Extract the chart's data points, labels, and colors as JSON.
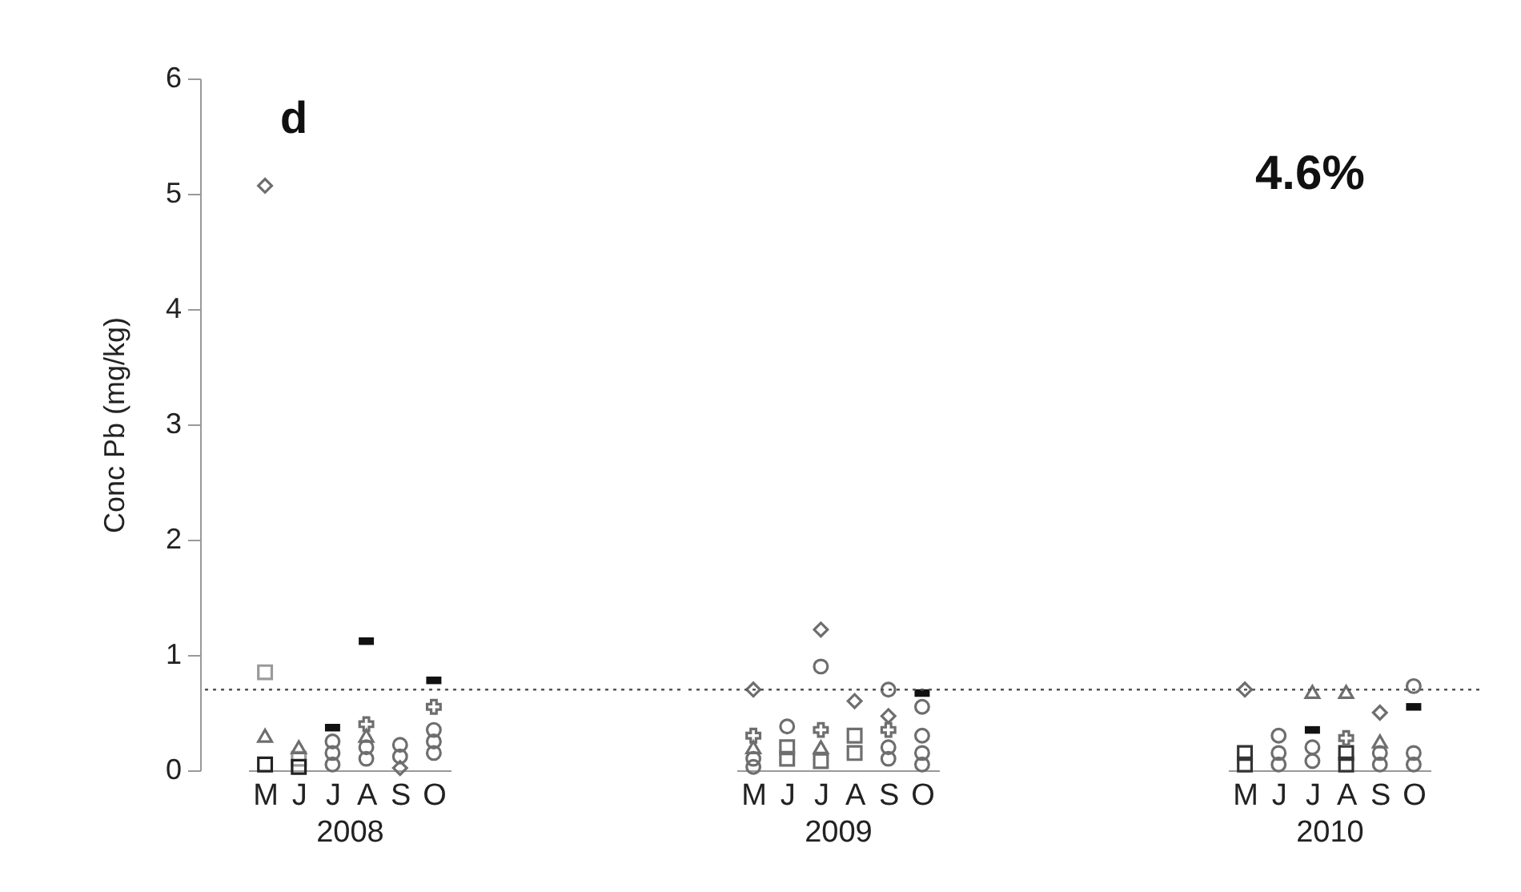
{
  "chart_data": [
    {
      "type": "scatter",
      "xlabel": "2008",
      "ylabel": "Conc Pb (mg/kg)",
      "categories": [
        "M",
        "J",
        "J",
        "A",
        "S",
        "O"
      ],
      "ylim": [
        0,
        6
      ],
      "yticks": [
        0,
        1,
        2,
        3,
        4,
        5,
        6
      ],
      "grid": false,
      "annotations": [
        "d"
      ],
      "ref_lines": [
        {
          "axis": "y",
          "value": 0.7,
          "line_style": "dotted",
          "color": "#555555"
        }
      ],
      "series": [
        {
          "marker": "diamond",
          "color": "#6e6e6e",
          "values": [
            5.07,
            null,
            null,
            null,
            0.02,
            null
          ]
        },
        {
          "marker": "square",
          "color": "#9a9a9a",
          "values": [
            0.85,
            0.1,
            null,
            null,
            null,
            null
          ]
        },
        {
          "marker": "square",
          "color": "#222222",
          "values": [
            0.05,
            0.03,
            null,
            null,
            null,
            null
          ]
        },
        {
          "marker": "triangle",
          "color": "#6e6e6e",
          "values": [
            0.3,
            0.2,
            null,
            0.3,
            null,
            null
          ]
        },
        {
          "color": "#111111",
          "values": [
            null,
            null,
            0.37,
            1.12,
            null,
            0.78
          ]
        },
        {
          "marker": "cross",
          "color": "#6e6e6e",
          "values": [
            null,
            null,
            null,
            0.4,
            null,
            0.55
          ]
        },
        {
          "marker": "circle",
          "color": "#6e6e6e",
          "values": [
            null,
            null,
            0.25,
            0.2,
            0.22,
            0.35
          ]
        },
        {
          "marker": "circle",
          "color": "#6e6e6e",
          "values": [
            null,
            null,
            0.15,
            0.1,
            0.12,
            0.25
          ]
        },
        {
          "marker": "circle",
          "color": "#6e6e6e",
          "values": [
            null,
            null,
            0.05,
            null,
            null,
            0.15
          ]
        }
      ]
    },
    {
      "type": "scatter",
      "xlabel": "2009",
      "categories": [
        "M",
        "J",
        "J",
        "A",
        "S",
        "O"
      ],
      "ylim": [
        0,
        6
      ],
      "yticks": [
        0,
        1,
        2,
        3,
        4,
        5,
        6
      ],
      "tick_labels": "x",
      "grid": false,
      "ref_lines": [
        {
          "axis": "y",
          "value": 0.7,
          "line_style": "dotted",
          "color": "#555555"
        }
      ],
      "series": [
        {
          "marker": "diamond",
          "color": "#6e6e6e",
          "values": [
            0.7,
            null,
            1.22,
            0.6,
            0.47,
            null
          ]
        },
        {
          "marker": "cross",
          "color": "#6e6e6e",
          "values": [
            0.3,
            null,
            0.35,
            null,
            0.35,
            null
          ]
        },
        {
          "marker": "triangle",
          "color": "#6e6e6e",
          "values": [
            0.2,
            null,
            0.2,
            null,
            null,
            null
          ]
        },
        {
          "marker": "square",
          "color": "#6e6e6e",
          "values": [
            null,
            0.2,
            0.08,
            0.3,
            null,
            null
          ]
        },
        {
          "marker": "square",
          "color": "#6e6e6e",
          "values": [
            null,
            0.1,
            null,
            0.15,
            null,
            null
          ]
        },
        {
          "color": "#111111",
          "values": [
            null,
            null,
            null,
            null,
            null,
            0.67
          ]
        },
        {
          "marker": "circle",
          "color": "#6e6e6e",
          "values": [
            0.1,
            0.38,
            0.9,
            null,
            0.7,
            0.55
          ]
        },
        {
          "marker": "circle",
          "color": "#6e6e6e",
          "values": [
            0.03,
            null,
            null,
            null,
            0.2,
            0.3
          ]
        },
        {
          "marker": "circle",
          "color": "#6e6e6e",
          "values": [
            null,
            null,
            null,
            null,
            0.1,
            0.15
          ]
        },
        {
          "marker": "circle",
          "color": "#6e6e6e",
          "values": [
            null,
            null,
            null,
            null,
            null,
            0.05
          ]
        }
      ]
    },
    {
      "type": "scatter",
      "xlabel": "2010",
      "categories": [
        "M",
        "J",
        "J",
        "A",
        "S",
        "O"
      ],
      "ylim": [
        0,
        6
      ],
      "yticks": [
        0,
        1,
        2,
        3,
        4,
        5,
        6
      ],
      "tick_labels": "x",
      "grid": false,
      "annotations": [
        "4.6%"
      ],
      "ref_lines": [
        {
          "axis": "y",
          "value": 0.7,
          "line_style": "dotted",
          "color": "#555555"
        }
      ],
      "series": [
        {
          "marker": "diamond",
          "color": "#6e6e6e",
          "values": [
            0.7,
            null,
            null,
            null,
            0.5,
            null
          ]
        },
        {
          "marker": "square",
          "color": "#333333",
          "values": [
            0.15,
            null,
            null,
            0.15,
            null,
            null
          ]
        },
        {
          "marker": "square",
          "color": "#333333",
          "values": [
            0.05,
            null,
            null,
            0.05,
            null,
            null
          ]
        },
        {
          "marker": "circle",
          "color": "#6e6e6e",
          "values": [
            null,
            0.3,
            0.2,
            null,
            0.15,
            0.73
          ]
        },
        {
          "marker": "circle",
          "color": "#6e6e6e",
          "values": [
            null,
            0.15,
            0.08,
            null,
            0.05,
            0.15
          ]
        },
        {
          "marker": "circle",
          "color": "#6e6e6e",
          "values": [
            null,
            0.05,
            null,
            null,
            null,
            0.05
          ]
        },
        {
          "marker": "triangle",
          "color": "#6e6e6e",
          "values": [
            null,
            null,
            0.68,
            0.68,
            0.25,
            null
          ]
        },
        {
          "color": "#111111",
          "values": [
            null,
            null,
            0.35,
            null,
            null,
            0.55
          ]
        },
        {
          "marker": "cross",
          "color": "#6e6e6e",
          "values": [
            null,
            null,
            null,
            0.28,
            null,
            null
          ]
        }
      ]
    }
  ]
}
